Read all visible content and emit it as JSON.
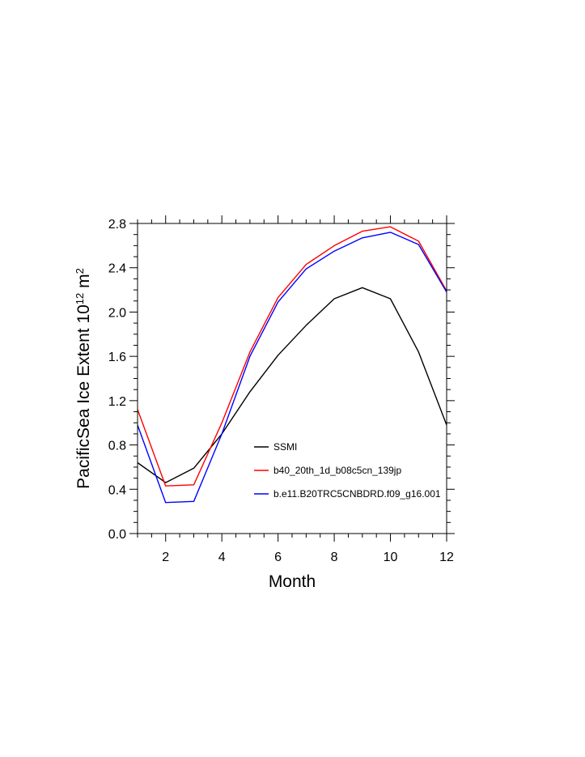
{
  "chart_data": {
    "type": "line",
    "xlabel": "Month",
    "ylabel": {
      "main": "PacificSea Ice Extent 10",
      "superscript": "12",
      "unit": " m",
      "unit_superscript": "2"
    },
    "xlim": [
      1,
      12
    ],
    "ylim": [
      0.0,
      2.8
    ],
    "x_ticks": [
      2,
      4,
      6,
      8,
      10,
      12
    ],
    "y_ticks": [
      0.0,
      0.4,
      0.8,
      1.2,
      1.6,
      2.0,
      2.4,
      2.8
    ],
    "y_tick_labels": [
      "0.0",
      "0.4",
      "0.8",
      "1.2",
      "1.6",
      "2.0",
      "2.4",
      "2.8"
    ],
    "grid": false,
    "legend_position": "inside-lower-right",
    "x": [
      1,
      2,
      3,
      4,
      5,
      6,
      7,
      8,
      9,
      10,
      11,
      12
    ],
    "series": [
      {
        "name": "SSMI",
        "color": "#000000",
        "values": [
          0.64,
          0.46,
          0.59,
          0.9,
          1.28,
          1.61,
          1.88,
          2.12,
          2.22,
          2.12,
          1.64,
          0.98
        ]
      },
      {
        "name": "b40_20th_1d_b08c5cn_139jp",
        "color": "#ff0000",
        "values": [
          1.12,
          0.43,
          0.44,
          1.0,
          1.64,
          2.13,
          2.43,
          2.6,
          2.73,
          2.77,
          2.64,
          2.19
        ]
      },
      {
        "name": "b.e11.B20TRC5CNBDRD.f09_g16.001",
        "color": "#0000ff",
        "values": [
          0.98,
          0.28,
          0.29,
          0.9,
          1.6,
          2.09,
          2.39,
          2.55,
          2.67,
          2.72,
          2.61,
          2.18
        ]
      }
    ]
  }
}
